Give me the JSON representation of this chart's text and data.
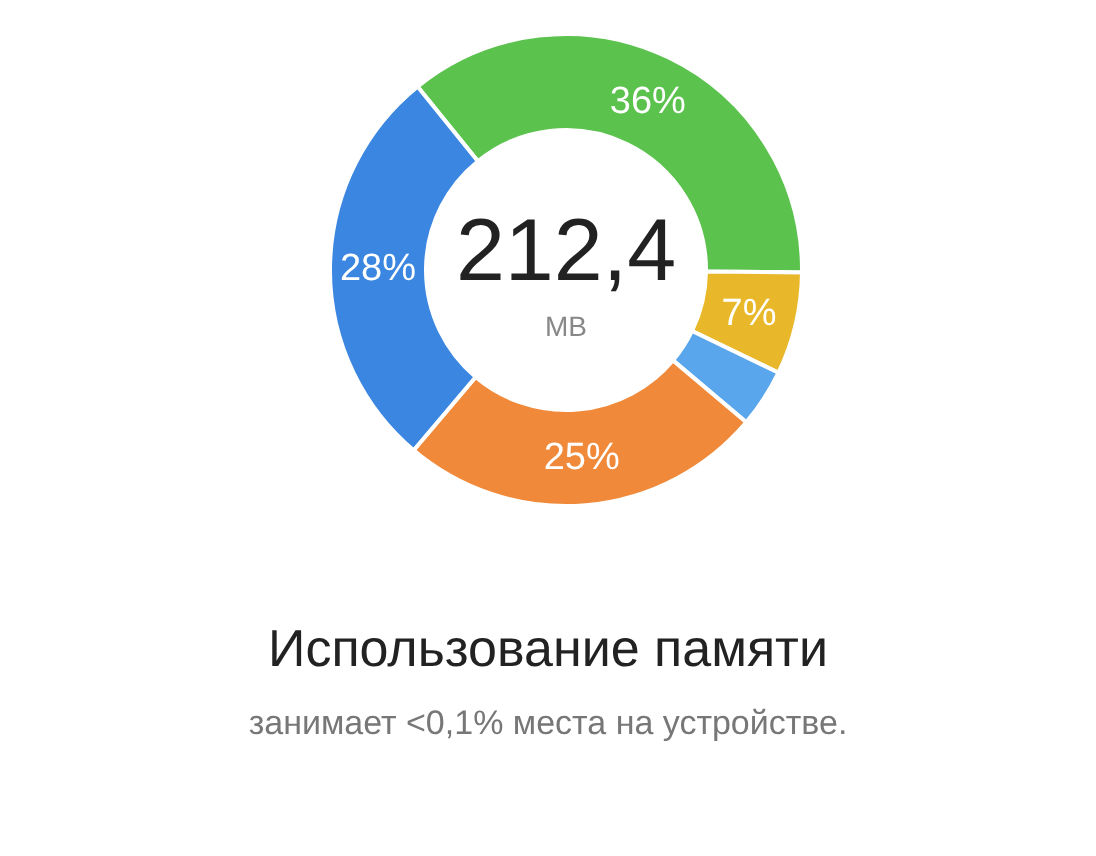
{
  "chart_data": {
    "type": "donut",
    "title": "Использование памяти",
    "subtitle": "занимает <0,1% места на устройстве.",
    "categories": [
      null,
      null,
      null,
      null,
      null
    ],
    "values": [
      36,
      7,
      4,
      25,
      28
    ],
    "colors": [
      "#5cc24e",
      "#e8b82a",
      "#5aa6ec",
      "#f08a3a",
      "#3a86e0"
    ],
    "value_labels": [
      "36%",
      "7%",
      null,
      "25%",
      "28%"
    ],
    "annotations": [
      "212,4",
      "MB"
    ]
  }
}
